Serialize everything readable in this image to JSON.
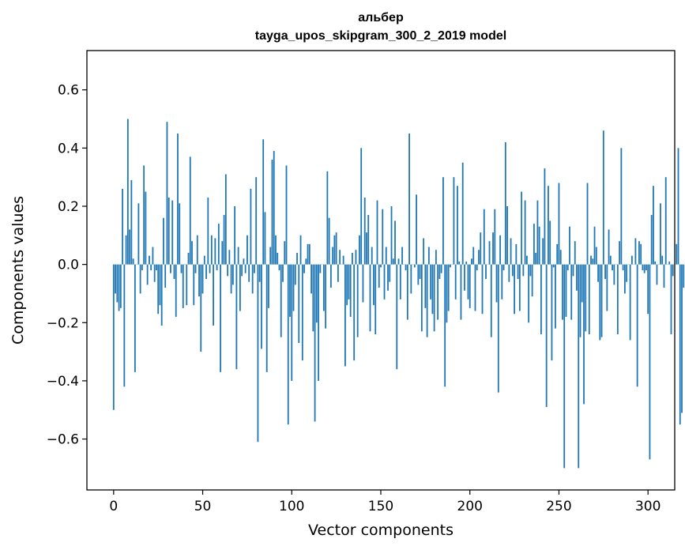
{
  "chart_data": {
    "type": "bar",
    "title": "альбер",
    "subtitle": "tayga_upos_skipgram_300_2_2019 model",
    "xlabel": "Vector components",
    "ylabel": "Components values",
    "xlim": [
      -15,
      315
    ],
    "ylim": [
      -0.775,
      0.735
    ],
    "xticks": [
      0,
      50,
      100,
      150,
      200,
      250,
      300
    ],
    "yticks": [
      -0.6,
      -0.4,
      -0.2,
      0.0,
      0.2,
      0.4,
      0.6
    ],
    "xtick_labels": [
      "0",
      "50",
      "100",
      "150",
      "200",
      "250",
      "300"
    ],
    "ytick_labels": [
      "−0.6",
      "−0.4",
      "−0.2",
      "0.0",
      "0.2",
      "0.4",
      "0.6"
    ],
    "bar_color": "#1f77b4",
    "grid": false,
    "values": [
      -0.5,
      -0.1,
      -0.13,
      -0.16,
      -0.15,
      0.26,
      -0.42,
      0.1,
      0.5,
      0.12,
      0.29,
      0.02,
      -0.37,
      0.0,
      0.21,
      -0.1,
      -0.02,
      0.34,
      0.25,
      -0.07,
      0.03,
      -0.02,
      0.06,
      -0.06,
      -0.02,
      -0.17,
      -0.14,
      -0.21,
      0.16,
      -0.08,
      0.49,
      0.23,
      -0.03,
      0.22,
      -0.05,
      -0.18,
      0.45,
      0.21,
      -0.03,
      -0.15,
      0.0,
      -0.14,
      0.04,
      0.37,
      0.08,
      -0.14,
      -0.03,
      0.1,
      -0.11,
      -0.3,
      -0.1,
      0.03,
      -0.05,
      0.23,
      -0.03,
      0.1,
      -0.21,
      0.09,
      -0.02,
      0.14,
      -0.37,
      0.08,
      0.17,
      0.31,
      -0.04,
      0.05,
      -0.1,
      -0.07,
      0.2,
      -0.36,
      0.06,
      -0.16,
      -0.04,
      0.02,
      -0.03,
      0.1,
      -0.06,
      0.26,
      -0.1,
      -0.03,
      0.3,
      -0.61,
      -0.06,
      -0.29,
      0.43,
      0.18,
      -0.37,
      -0.15,
      0.06,
      0.36,
      0.39,
      0.1,
      0.04,
      -0.02,
      -0.25,
      -0.06,
      0.08,
      0.34,
      -0.55,
      -0.18,
      -0.4,
      -0.16,
      -0.07,
      0.04,
      -0.27,
      0.1,
      -0.33,
      -0.03,
      0.02,
      0.07,
      0.07,
      -0.1,
      -0.23,
      -0.54,
      -0.2,
      -0.4,
      -0.03,
      0.0,
      -0.16,
      -0.22,
      0.32,
      0.16,
      -0.08,
      0.06,
      0.1,
      0.11,
      -0.06,
      0.05,
      0.0,
      0.03,
      -0.35,
      -0.14,
      -0.12,
      -0.18,
      0.04,
      -0.33,
      0.05,
      -0.25,
      0.1,
      0.4,
      -0.13,
      0.23,
      0.11,
      0.17,
      -0.23,
      0.06,
      -0.14,
      -0.24,
      0.22,
      -0.08,
      -0.01,
      0.19,
      -0.12,
      0.06,
      -0.09,
      -0.06,
      0.2,
      0.02,
      0.15,
      -0.36,
      0.02,
      -0.12,
      0.06,
      0.0,
      -0.02,
      -0.19,
      0.45,
      -0.1,
      0.0,
      -0.01,
      0.24,
      -0.07,
      -0.05,
      -0.23,
      0.09,
      -0.15,
      -0.25,
      0.06,
      -0.12,
      -0.17,
      -0.23,
      0.05,
      -0.19,
      -0.05,
      -0.03,
      0.3,
      -0.42,
      -0.2,
      -0.16,
      -0.01,
      0.0,
      0.3,
      -0.12,
      0.27,
      0.01,
      -0.19,
      0.35,
      -0.09,
      0.01,
      -0.12,
      -0.15,
      0.02,
      0.06,
      -0.16,
      -0.02,
      0.05,
      0.11,
      -0.17,
      0.19,
      -0.05,
      0.0,
      0.08,
      -0.25,
      0.11,
      0.19,
      -0.13,
      -0.44,
      0.1,
      -0.12,
      -0.02,
      0.42,
      0.2,
      -0.06,
      0.09,
      -0.04,
      -0.17,
      0.07,
      -0.05,
      -0.16,
      0.25,
      -0.04,
      0.22,
      0.03,
      -0.2,
      -0.04,
      -0.11,
      0.14,
      0.04,
      0.22,
      0.13,
      -0.24,
      0.09,
      0.33,
      -0.49,
      0.27,
      0.15,
      -0.33,
      -0.01,
      -0.22,
      0.07,
      0.28,
      0.05,
      -0.19,
      -0.7,
      -0.18,
      -0.02,
      0.13,
      -0.19,
      -0.04,
      0.08,
      -0.09,
      -0.7,
      -0.25,
      -0.13,
      -0.48,
      -0.23,
      0.28,
      -0.24,
      0.03,
      0.02,
      0.13,
      0.06,
      -0.06,
      -0.26,
      -0.25,
      0.46,
      -0.05,
      -0.16,
      0.12,
      0.03,
      -0.02,
      -0.07,
      0.0,
      -0.24,
      0.08,
      0.4,
      -0.02,
      -0.1,
      -0.06,
      0.0,
      -0.26,
      0.03,
      0.0,
      0.09,
      -0.42,
      0.08,
      0.07,
      -0.02,
      -0.03,
      -0.02,
      -0.17,
      -0.67,
      0.17,
      0.27,
      0.01,
      -0.07,
      0.0,
      0.21,
      0.03,
      -0.08,
      0.3,
      0.0,
      0.01,
      -0.24,
      -0.04,
      0.0,
      0.07,
      0.4,
      -0.55,
      -0.51,
      -0.08
    ]
  }
}
